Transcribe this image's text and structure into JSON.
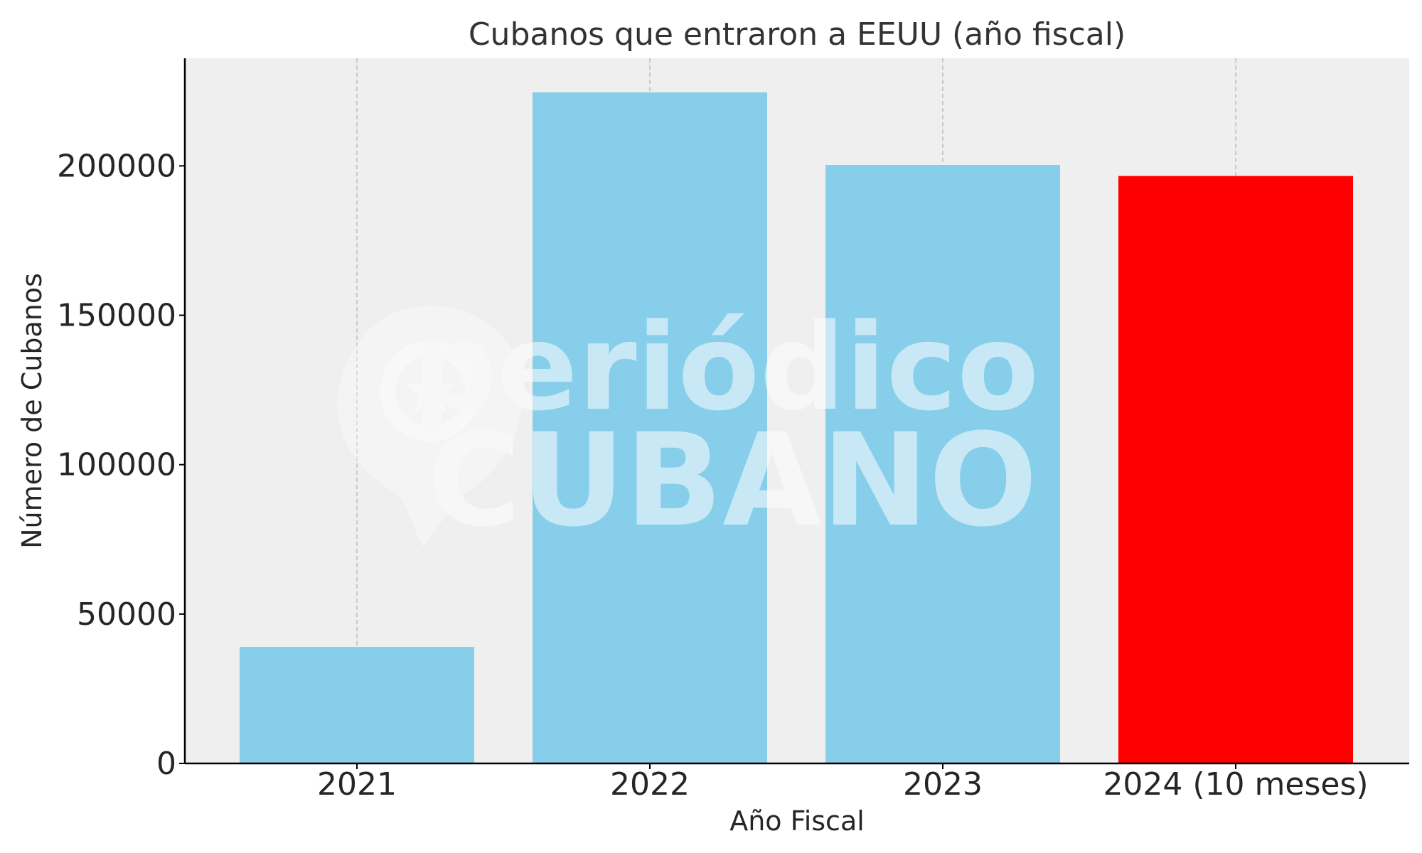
{
  "chart_data": {
    "type": "bar",
    "title": "Cubanos que entraron a EEUU (año fiscal)",
    "xlabel": "Año Fiscal",
    "ylabel": "Número de Cubanos",
    "categories": [
      "2021",
      "2022",
      "2023",
      "2024 (10 meses)"
    ],
    "values": [
      39000,
      224600,
      200300,
      196600
    ],
    "bar_colors": [
      "#87CEEB",
      "#87CEEB",
      "#87CEEB",
      "#FF0000"
    ],
    "ylim": [
      0,
      236000
    ],
    "yticks": [
      0,
      50000,
      100000,
      150000,
      200000
    ],
    "grid": "vertical dashed at categories",
    "legend": "none"
  },
  "style": {
    "plot_background": "#EFEFEF",
    "grid_color": "#BDBDBD",
    "axis_color": "#000000"
  },
  "watermark": {
    "line1": "periódico",
    "line2": "CUBANO"
  }
}
